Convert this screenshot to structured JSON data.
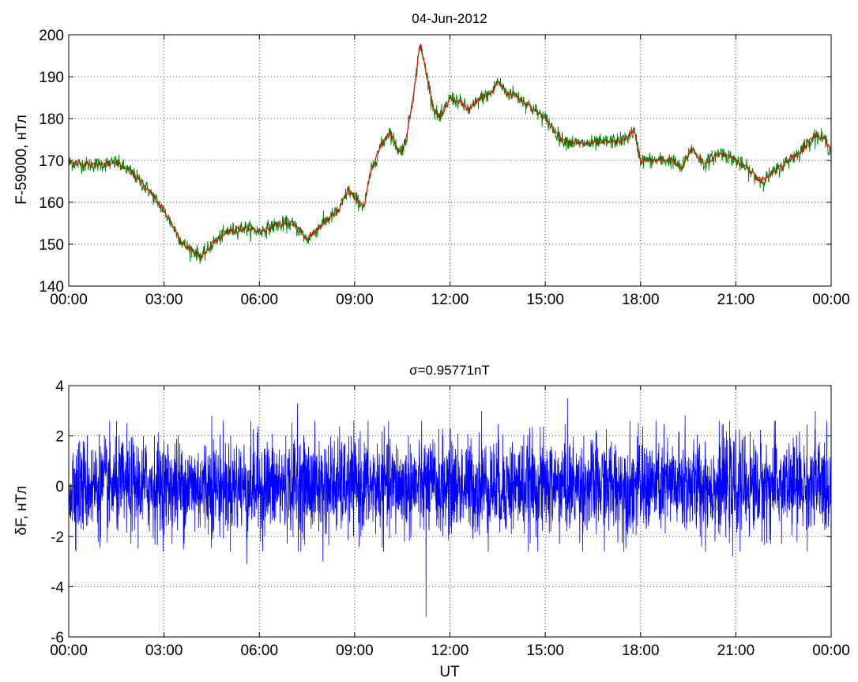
{
  "chart_data": [
    {
      "type": "line",
      "title": "04-Jun-2012",
      "xlabel": "",
      "ylabel": "F-59000, нТл",
      "x_ticks": [
        "00:00",
        "03:00",
        "06:00",
        "09:00",
        "12:00",
        "15:00",
        "18:00",
        "21:00",
        "00:00"
      ],
      "x_range_hours": [
        0,
        24
      ],
      "ylim": [
        140,
        200
      ],
      "y_ticks": [
        140,
        150,
        160,
        170,
        180,
        190,
        200
      ],
      "grid": true,
      "series": [
        {
          "color": "#008000",
          "style": "raw noisy trace"
        },
        {
          "color": "#ff0000",
          "style": "smoothed trace"
        }
      ],
      "trend_points": [
        [
          0.0,
          169.5
        ],
        [
          0.5,
          169.0
        ],
        [
          1.0,
          169.0
        ],
        [
          1.5,
          169.5
        ],
        [
          2.0,
          167.0
        ],
        [
          2.5,
          163.0
        ],
        [
          3.0,
          158.0
        ],
        [
          3.3,
          154.0
        ],
        [
          3.6,
          150.0
        ],
        [
          4.0,
          148.0
        ],
        [
          4.2,
          147.0
        ],
        [
          4.5,
          150.0
        ],
        [
          5.0,
          153.0
        ],
        [
          5.5,
          154.0
        ],
        [
          6.0,
          153.0
        ],
        [
          6.5,
          154.5
        ],
        [
          7.0,
          155.0
        ],
        [
          7.3,
          153.0
        ],
        [
          7.5,
          151.0
        ],
        [
          8.0,
          155.0
        ],
        [
          8.5,
          158.0
        ],
        [
          8.8,
          163.0
        ],
        [
          9.0,
          161.0
        ],
        [
          9.3,
          159.0
        ],
        [
          9.5,
          167.0
        ],
        [
          9.8,
          173.0
        ],
        [
          10.1,
          177.0
        ],
        [
          10.4,
          172.0
        ],
        [
          10.6,
          174.0
        ],
        [
          10.9,
          188.0
        ],
        [
          11.05,
          198.0
        ],
        [
          11.2,
          193.0
        ],
        [
          11.5,
          182.0
        ],
        [
          11.7,
          180.0
        ],
        [
          12.0,
          185.0
        ],
        [
          12.3,
          184.0
        ],
        [
          12.6,
          182.0
        ],
        [
          13.0,
          185.0
        ],
        [
          13.3,
          186.0
        ],
        [
          13.5,
          189.0
        ],
        [
          13.8,
          186.0
        ],
        [
          14.0,
          186.0
        ],
        [
          14.5,
          183.0
        ],
        [
          15.0,
          180.0
        ],
        [
          15.5,
          175.0
        ],
        [
          16.0,
          174.0
        ],
        [
          16.5,
          174.0
        ],
        [
          17.0,
          174.5
        ],
        [
          17.5,
          175.0
        ],
        [
          17.8,
          177.0
        ],
        [
          18.0,
          170.0
        ],
        [
          18.5,
          170.0
        ],
        [
          19.0,
          170.0
        ],
        [
          19.3,
          168.0
        ],
        [
          19.6,
          173.0
        ],
        [
          20.0,
          169.0
        ],
        [
          20.5,
          172.0
        ],
        [
          21.0,
          170.0
        ],
        [
          21.5,
          167.0
        ],
        [
          21.8,
          165.0
        ],
        [
          22.0,
          166.0
        ],
        [
          22.5,
          169.0
        ],
        [
          23.0,
          172.0
        ],
        [
          23.5,
          176.0
        ],
        [
          23.8,
          175.0
        ],
        [
          24.0,
          172.0
        ]
      ],
      "noise_amplitude": 1.5
    },
    {
      "type": "line",
      "title": "σ=0.95771nT",
      "xlabel": "UT",
      "ylabel": "δF, нТл",
      "x_ticks": [
        "00:00",
        "03:00",
        "06:00",
        "09:00",
        "12:00",
        "15:00",
        "18:00",
        "21:00",
        "00:00"
      ],
      "x_range_hours": [
        0,
        24
      ],
      "ylim": [
        -6,
        4
      ],
      "y_ticks": [
        -6,
        -4,
        -2,
        0,
        2,
        4
      ],
      "grid": true,
      "series": [
        {
          "color": "#0000ff",
          "style": "residual trace"
        }
      ],
      "sigma": 0.95771,
      "spikes": [
        [
          5.6,
          -3.1
        ],
        [
          7.2,
          3.3
        ],
        [
          8.0,
          -3.0
        ],
        [
          11.25,
          -5.2
        ],
        [
          15.7,
          3.5
        ],
        [
          4.5,
          2.8
        ],
        [
          23.5,
          3.0
        ],
        [
          20.9,
          -2.8
        ],
        [
          13.0,
          3.0
        ],
        [
          19.4,
          2.8
        ]
      ]
    }
  ]
}
